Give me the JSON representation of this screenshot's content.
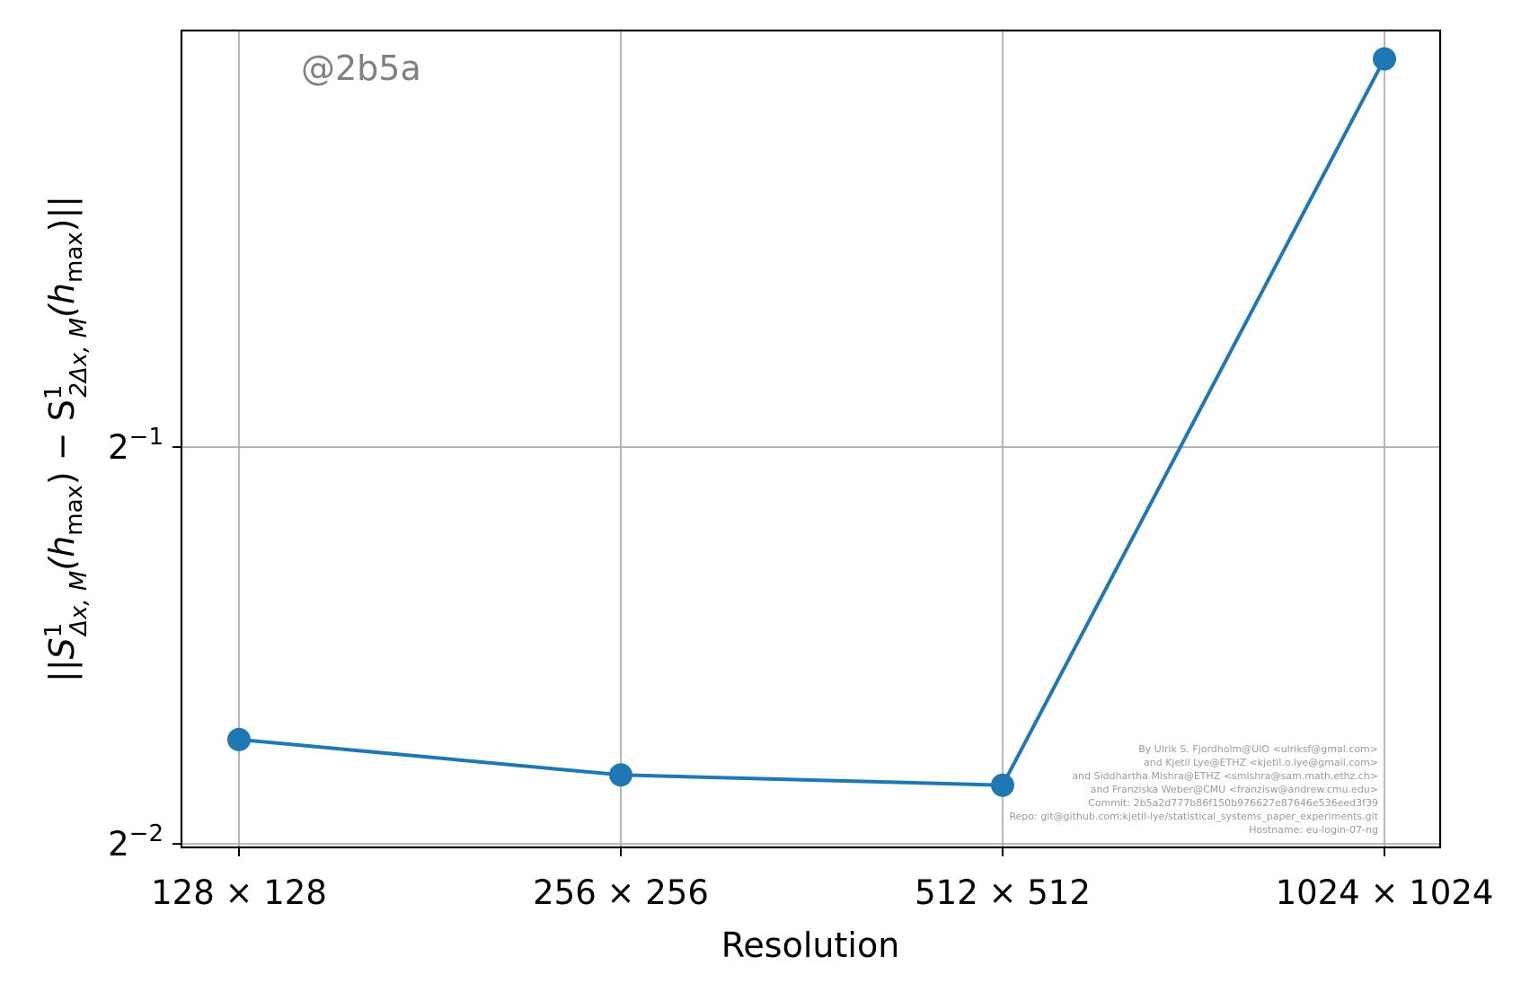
{
  "chart_data": {
    "type": "line",
    "categories": [
      "128 × 128",
      "256 × 256",
      "512 × 512",
      "1024 × 1024"
    ],
    "series": [
      {
        "values": [
          0.3,
          0.282,
          0.277,
          0.985
        ],
        "color": "#1f77b4",
        "marker": "circle"
      }
    ],
    "xlabel": "Resolution",
    "ylabel": "||S¹Δx,M(hmax) − S¹2Δx,M(hmax)||",
    "ylabel_parts": {
      "open": "||S",
      "sup1": "1",
      "sub1": "Δx, M",
      "arg1_open": "(h",
      "arg1_sub": "max",
      "arg1_close": ") − S",
      "sup2": "1",
      "sub2": "2Δx, M",
      "arg2_open": "(h",
      "arg2_sub": "max",
      "arg2_close": ")||"
    },
    "yscale": "log2",
    "ylim": [
      0.2485,
      1.035
    ],
    "yticks": [
      {
        "value": 0.25,
        "base": "2",
        "exp": "−2"
      },
      {
        "value": 0.5,
        "base": "2",
        "exp": "−1"
      }
    ],
    "grid": true,
    "legend": "none"
  },
  "watermark": "@2b5a",
  "credits": [
    "By Ulrik S. Fjordholm@UiO <ulriksf@gmal.com>",
    "and Kjetil Lye@ETHZ <kjetil.o.lye@gmail.com>",
    "and Siddhartha Mishra@ETHZ <smishra@sam.math.ethz.ch>",
    "and Franziska Weber@CMU <franzisw@andrew.cmu.edu>",
    "Commit: 2b5a2d777b86f150b976627e87646e536eed3f39",
    "Repo: git@github.com:kjetil-lye/statistical_systems_paper_experiments.git",
    "Hostname: eu-login-07-ng"
  ]
}
